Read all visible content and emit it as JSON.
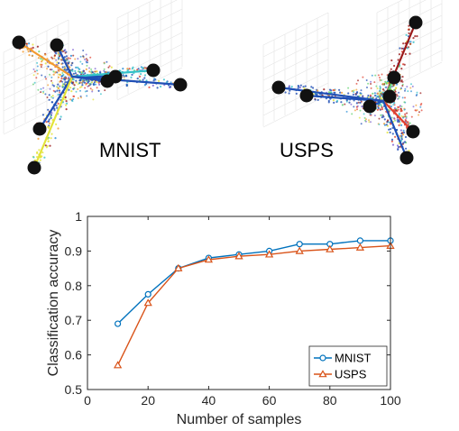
{
  "panels": {
    "left_label": "MNIST",
    "right_label": "USPS",
    "scatter_colors": [
      "#1f4fb5",
      "#2a8fd6",
      "#33c1c9",
      "#5fd16e",
      "#e3e33a",
      "#f29a2e",
      "#e0402f",
      "#9b1a1a",
      "#7a5fd1"
    ],
    "anchor_color": "#111111",
    "left_arm_colors": [
      "#f29a2e",
      "#1f4fb5",
      "#1f4fb5",
      "#e3e33a",
      "#1f4fb5",
      "#1f4fb5",
      "#33c1c9",
      "#1f4fb5"
    ],
    "right_arm_colors": [
      "#1f4fb5",
      "#1f4fb5",
      "#9b1a1a",
      "#5fd16e",
      "#1f4fb5",
      "#33c1c9",
      "#e0402f",
      "#1f4fb5"
    ]
  },
  "chart_data": {
    "type": "line",
    "x": [
      10,
      20,
      30,
      40,
      50,
      60,
      70,
      80,
      90,
      100
    ],
    "series": [
      {
        "name": "MNIST",
        "values": [
          0.69,
          0.775,
          0.85,
          0.88,
          0.89,
          0.9,
          0.92,
          0.92,
          0.93,
          0.93
        ],
        "color": "#0072BD",
        "marker": "circle"
      },
      {
        "name": "USPS",
        "values": [
          0.57,
          0.75,
          0.85,
          0.875,
          0.885,
          0.89,
          0.9,
          0.905,
          0.91,
          0.915
        ],
        "color": "#D95319",
        "marker": "triangle"
      }
    ],
    "title": "",
    "xlabel": "Number of samples",
    "ylabel": "Classification accuracy",
    "xlim": [
      0,
      100
    ],
    "ylim": [
      0.5,
      1
    ],
    "xticks": [
      "0",
      "20",
      "40",
      "60",
      "80",
      "100"
    ],
    "yticks": [
      "0.5",
      "0.6",
      "0.7",
      "0.8",
      "0.9",
      "1"
    ],
    "grid": false,
    "legend_position": "bottom-right"
  }
}
